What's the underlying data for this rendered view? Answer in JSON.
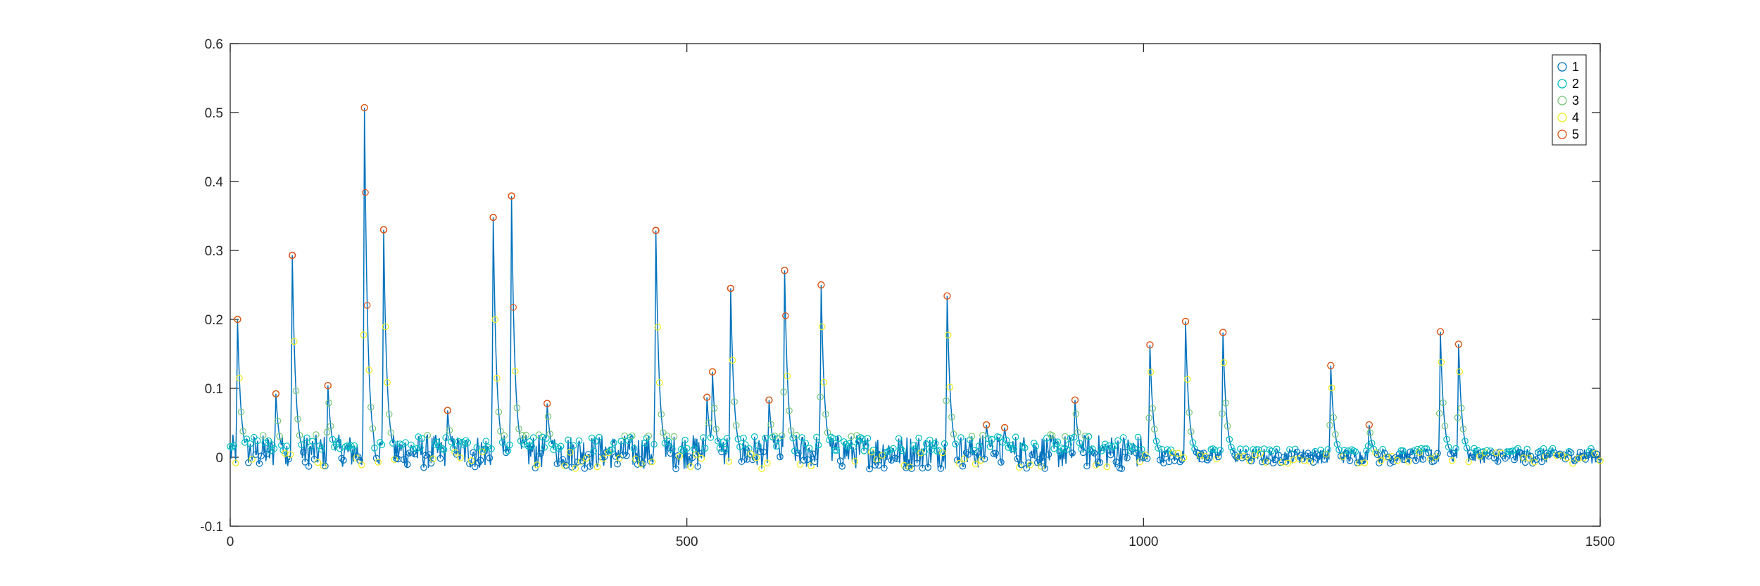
{
  "chart_data": {
    "type": "line",
    "title": "",
    "xlabel": "",
    "ylabel": "",
    "xlim": [
      0,
      1500
    ],
    "ylim": [
      -0.1,
      0.6
    ],
    "xticks": [
      0,
      500,
      1000,
      1500
    ],
    "xtick_labels": [
      "0",
      "500",
      "1000",
      "1500"
    ],
    "yticks": [
      -0.1,
      0,
      0.1,
      0.2,
      0.3,
      0.4,
      0.5,
      0.6
    ],
    "ytick_labels": [
      "-0.1",
      "0",
      "0.1",
      "0.2",
      "0.3",
      "0.4",
      "0.5",
      "0.6"
    ],
    "grid": false,
    "box": true,
    "legend": {
      "position": "top-right",
      "entries": [
        "1",
        "2",
        "3",
        "4",
        "5"
      ]
    },
    "line_color": "#0072BD",
    "series": [
      {
        "name": "1",
        "color": "#0072BD",
        "marker": "circle"
      },
      {
        "name": "2",
        "color": "#00BFBF",
        "marker": "circle"
      },
      {
        "name": "3",
        "color": "#77C77A",
        "marker": "circle"
      },
      {
        "name": "4",
        "color": "#EDED21",
        "marker": "circle"
      },
      {
        "name": "5",
        "color": "#D95319",
        "marker": "circle"
      }
    ],
    "peaks": [
      {
        "x": 8,
        "y": 0.2
      },
      {
        "x": 50,
        "y": 0.092
      },
      {
        "x": 68,
        "y": 0.293
      },
      {
        "x": 107,
        "y": 0.104
      },
      {
        "x": 147,
        "y": 0.507
      },
      {
        "x": 168,
        "y": 0.33
      },
      {
        "x": 238,
        "y": 0.068
      },
      {
        "x": 288,
        "y": 0.348
      },
      {
        "x": 308,
        "y": 0.379
      },
      {
        "x": 347,
        "y": 0.078
      },
      {
        "x": 466,
        "y": 0.329
      },
      {
        "x": 522,
        "y": 0.087
      },
      {
        "x": 528,
        "y": 0.124
      },
      {
        "x": 548,
        "y": 0.245
      },
      {
        "x": 590,
        "y": 0.083
      },
      {
        "x": 607,
        "y": 0.271
      },
      {
        "x": 647,
        "y": 0.25
      },
      {
        "x": 785,
        "y": 0.234
      },
      {
        "x": 828,
        "y": 0.047
      },
      {
        "x": 848,
        "y": 0.043
      },
      {
        "x": 925,
        "y": 0.083
      },
      {
        "x": 1007,
        "y": 0.163
      },
      {
        "x": 1046,
        "y": 0.197
      },
      {
        "x": 1087,
        "y": 0.181
      },
      {
        "x": 1205,
        "y": 0.133
      },
      {
        "x": 1247,
        "y": 0.047
      },
      {
        "x": 1325,
        "y": 0.182
      },
      {
        "x": 1345,
        "y": 0.164
      }
    ]
  }
}
